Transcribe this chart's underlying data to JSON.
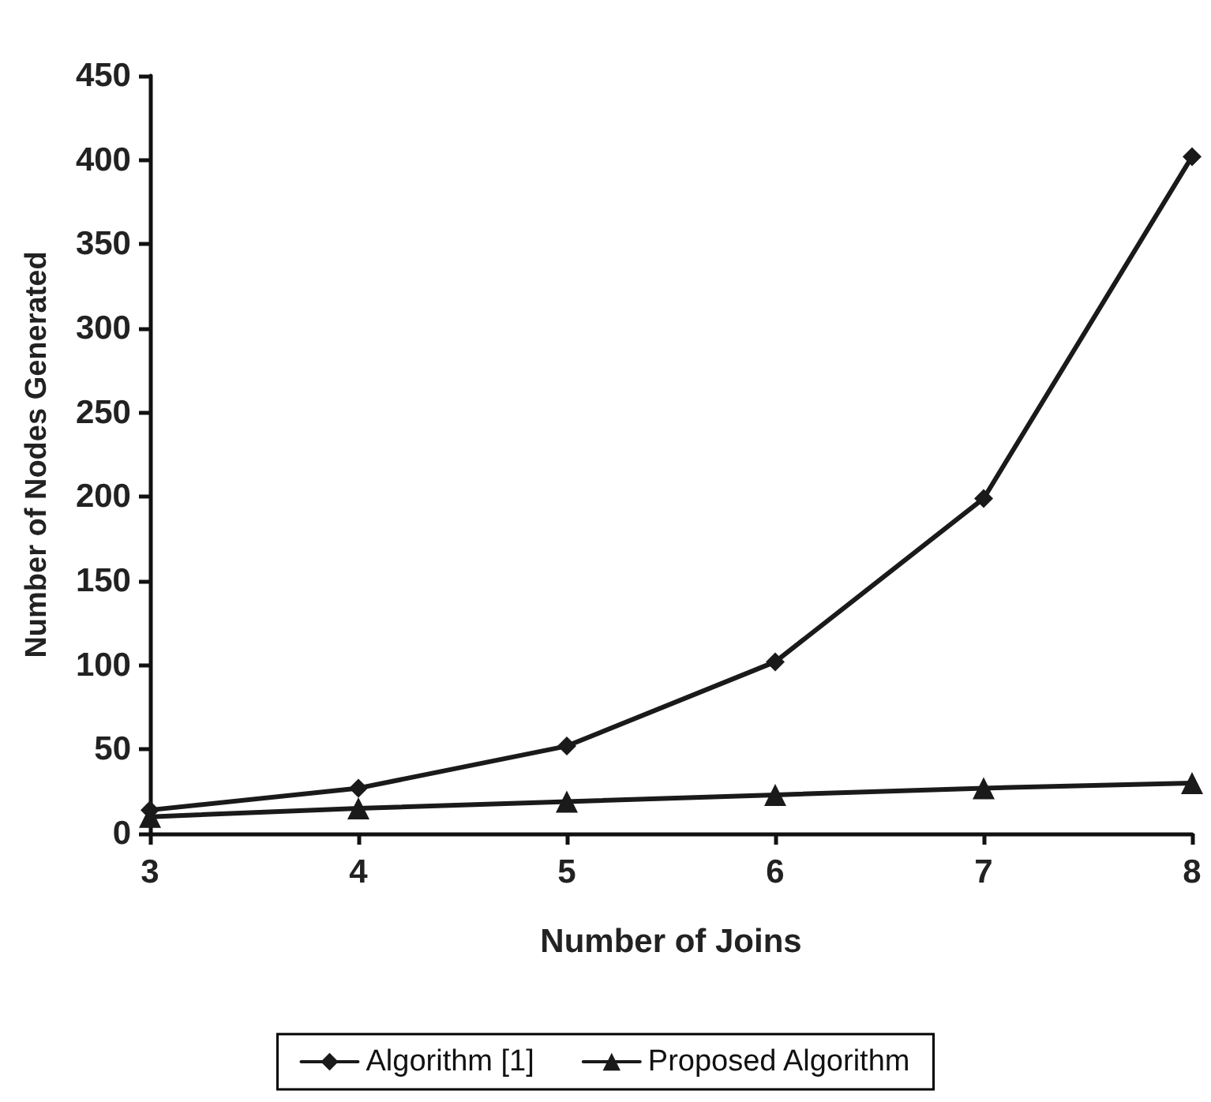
{
  "chart_data": {
    "type": "line",
    "xlabel": "Number of Joins",
    "ylabel": "Number of Nodes Generated",
    "x": [
      3,
      4,
      5,
      6,
      7,
      8
    ],
    "series": [
      {
        "name": "Algorithm [1]",
        "color": "#1a1a1a",
        "marker": "diamond",
        "values": [
          14,
          27,
          52,
          102,
          199,
          402
        ]
      },
      {
        "name": "Proposed Algorithm",
        "color": "#1a1a1a",
        "marker": "triangle",
        "values": [
          10,
          15,
          19,
          23,
          27,
          30
        ]
      }
    ],
    "xlim": [
      3,
      8
    ],
    "xticks": [
      3,
      4,
      5,
      6,
      7,
      8
    ],
    "ylim": [
      0,
      450
    ],
    "yticks": [
      0,
      50,
      100,
      150,
      200,
      250,
      300,
      350,
      400,
      450
    ],
    "grid": false,
    "legend": "bottom"
  }
}
